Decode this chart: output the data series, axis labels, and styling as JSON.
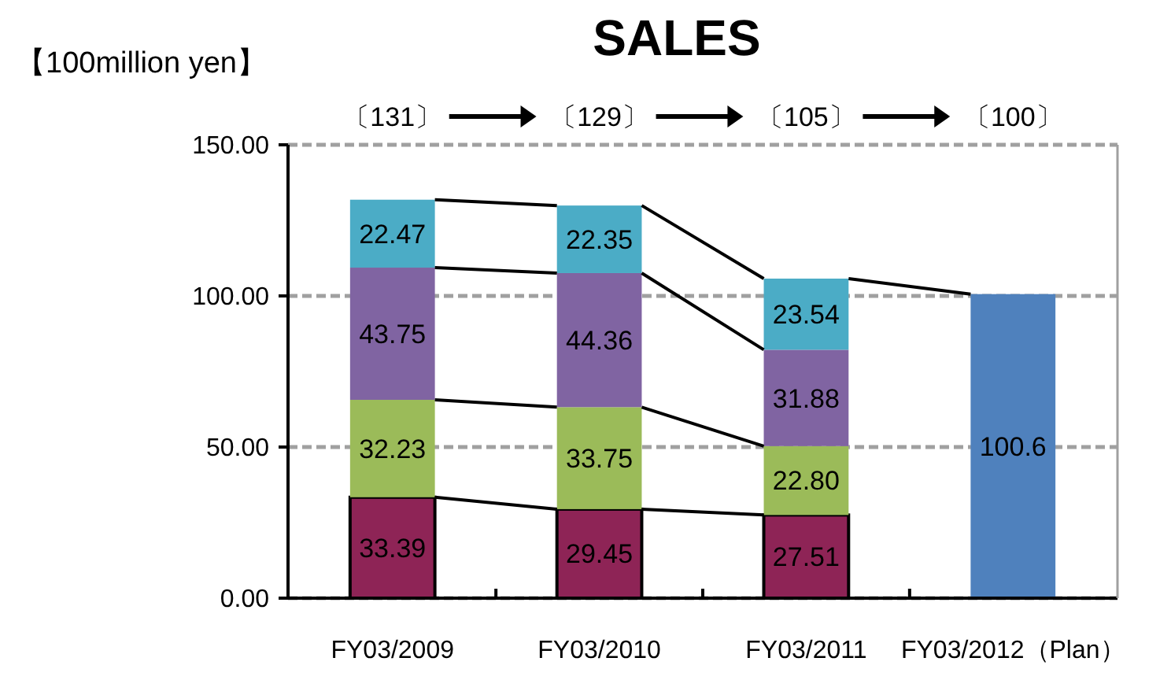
{
  "chart_data": {
    "type": "bar",
    "title": "SALES",
    "ylabel": "【100million yen】",
    "stacked": true,
    "categories": [
      "FY03/2009",
      "FY03/2010",
      "FY03/2011",
      "FY03/2012（Plan）"
    ],
    "series": [
      {
        "color": "#8e2456",
        "values": [
          33.39,
          29.45,
          27.51,
          null
        ],
        "value_labels": [
          "33.39",
          "29.45",
          "27.51",
          null
        ]
      },
      {
        "color": "#9bbb59",
        "values": [
          32.23,
          33.75,
          22.8,
          null
        ],
        "value_labels": [
          "32.23",
          "33.75",
          "22.80",
          null
        ]
      },
      {
        "color": "#8064a2",
        "values": [
          43.75,
          44.36,
          31.88,
          null
        ],
        "value_labels": [
          "43.75",
          "44.36",
          "31.88",
          null
        ]
      },
      {
        "color": "#4bacc6",
        "values": [
          22.47,
          22.35,
          23.54,
          null
        ],
        "value_labels": [
          "22.47",
          "22.35",
          "23.54",
          null
        ]
      },
      {
        "color": "#4f81bd",
        "values": [
          null,
          null,
          null,
          100.6
        ],
        "value_labels": [
          null,
          null,
          null,
          "100.6"
        ]
      }
    ],
    "annotations": [
      "〔131〕",
      "〔129〕",
      "〔105〕",
      "〔100〕"
    ],
    "ylim": [
      0,
      150
    ],
    "yticks": [
      {
        "value": 0,
        "label": "0.00"
      },
      {
        "value": 50,
        "label": "50.00"
      },
      {
        "value": 100,
        "label": "100.00"
      },
      {
        "value": 150,
        "label": "150.00"
      }
    ],
    "grid": "y"
  }
}
